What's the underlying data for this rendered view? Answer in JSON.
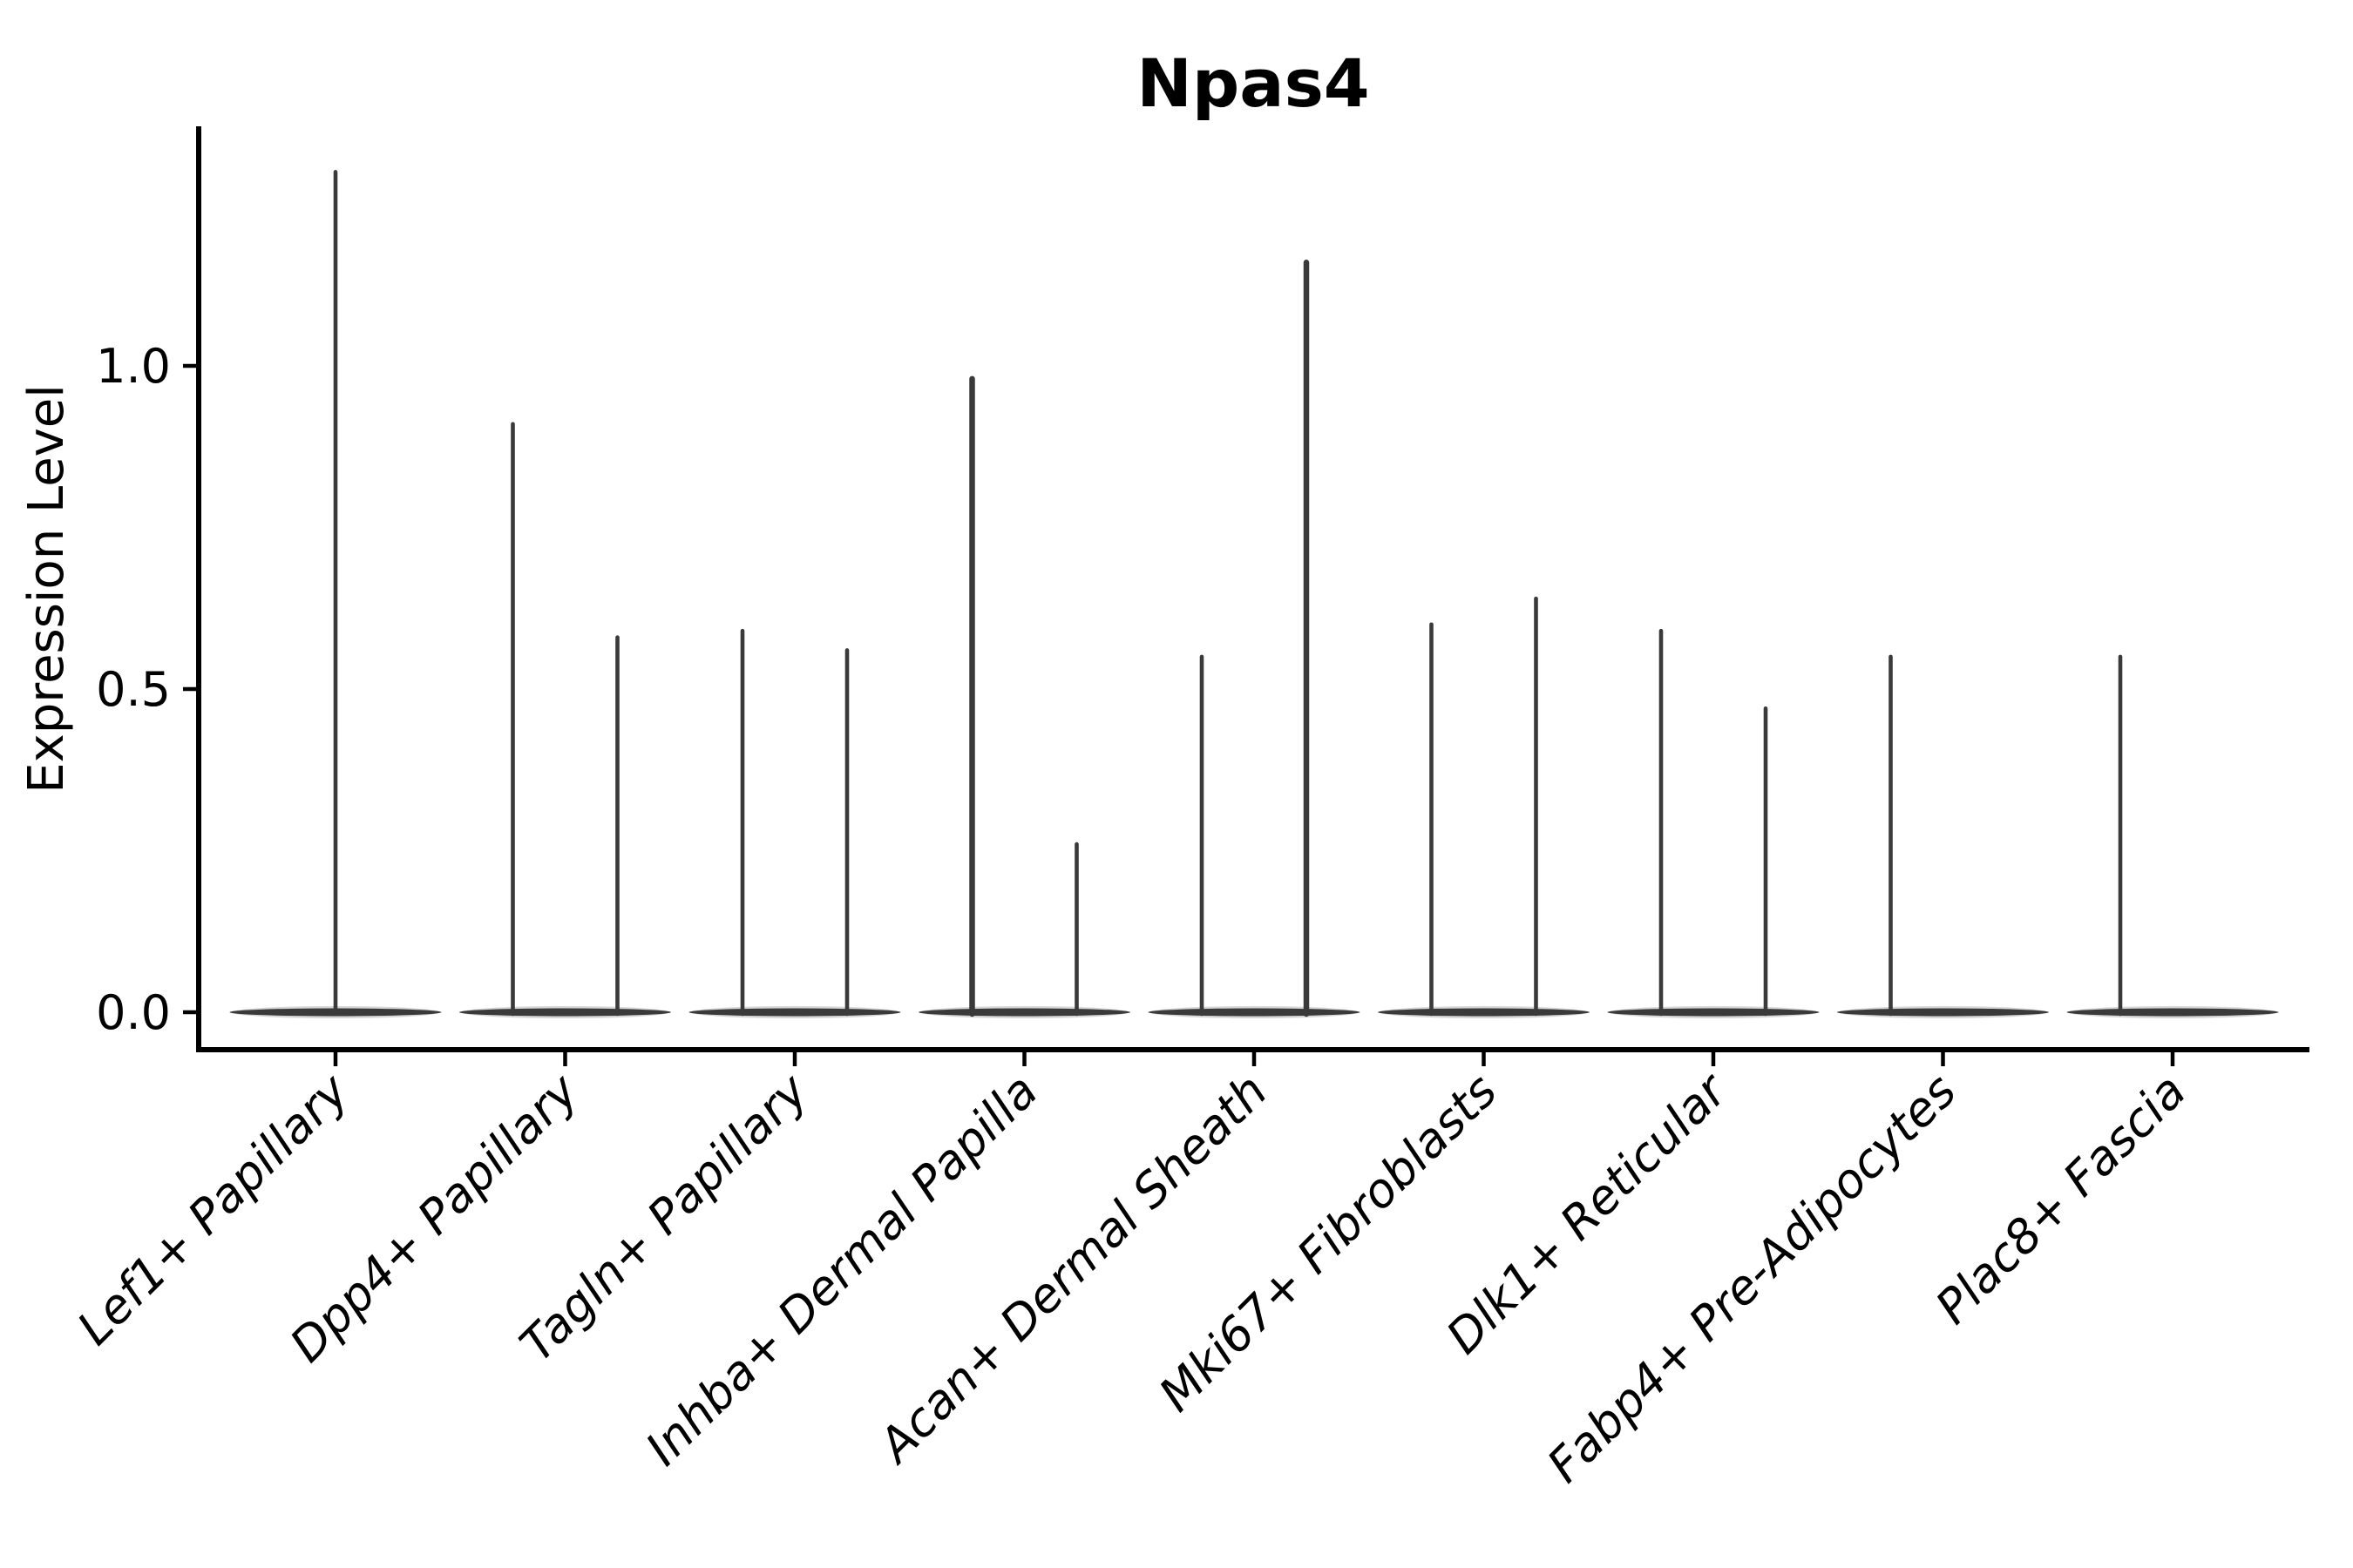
{
  "chart_data": {
    "type": "violin",
    "title": "Npas4",
    "ylabel": "Expression Level",
    "xlabel": "",
    "legend": "none",
    "grid": false,
    "ylim": [
      -0.06,
      1.37
    ],
    "yticks": [
      "0.0",
      "0.5",
      "1.0"
    ],
    "ytick_values": [
      0.0,
      0.5,
      1.0
    ],
    "categories": [
      "Lef1+ Papillary",
      "Dpp4+ Papillary",
      "Tagln+ Papillary",
      "Inhba+ Dermal Papilla",
      "Acan+ Dermal Sheath",
      "Mki67+ Fibroblasts",
      "Dlk1+ Reticular",
      "Fabp4+ Pre-Adipocytes",
      "Plac8+ Fascia"
    ],
    "violins": [
      {
        "category": "Lef1+ Papillary",
        "spikes": [
          {
            "pos": "center",
            "max": 1.3
          }
        ]
      },
      {
        "category": "Dpp4+ Papillary",
        "spikes": [
          {
            "pos": "left",
            "max": 0.91
          },
          {
            "pos": "right",
            "max": 0.58
          }
        ]
      },
      {
        "category": "Tagln+ Papillary",
        "spikes": [
          {
            "pos": "left",
            "max": 0.59
          },
          {
            "pos": "right",
            "max": 0.56
          }
        ]
      },
      {
        "category": "Inhba+ Dermal Papilla",
        "spikes": [
          {
            "pos": "left",
            "max": 0.98,
            "thick": true
          },
          {
            "pos": "right",
            "max": 0.26
          }
        ]
      },
      {
        "category": "Acan+ Dermal Sheath",
        "spikes": [
          {
            "pos": "left",
            "max": 0.55
          },
          {
            "pos": "right",
            "max": 1.16,
            "thick": true
          }
        ]
      },
      {
        "category": "Mki67+ Fibroblasts",
        "spikes": [
          {
            "pos": "left",
            "max": 0.6
          },
          {
            "pos": "right",
            "max": 0.64
          }
        ]
      },
      {
        "category": "Dlk1+ Reticular",
        "spikes": [
          {
            "pos": "left",
            "max": 0.59
          },
          {
            "pos": "right",
            "max": 0.47
          }
        ]
      },
      {
        "category": "Fabp4+ Pre-Adipocytes",
        "spikes": [
          {
            "pos": "left",
            "max": 0.55
          }
        ]
      },
      {
        "category": "Plac8+ Fascia",
        "spikes": [
          {
            "pos": "left",
            "max": 0.55
          }
        ]
      }
    ],
    "baseline_value": 0.0,
    "colors": {
      "violin": "#3a3a3a",
      "violin_halo": "#777777",
      "axis": "#000000",
      "background": "#ffffff"
    }
  }
}
